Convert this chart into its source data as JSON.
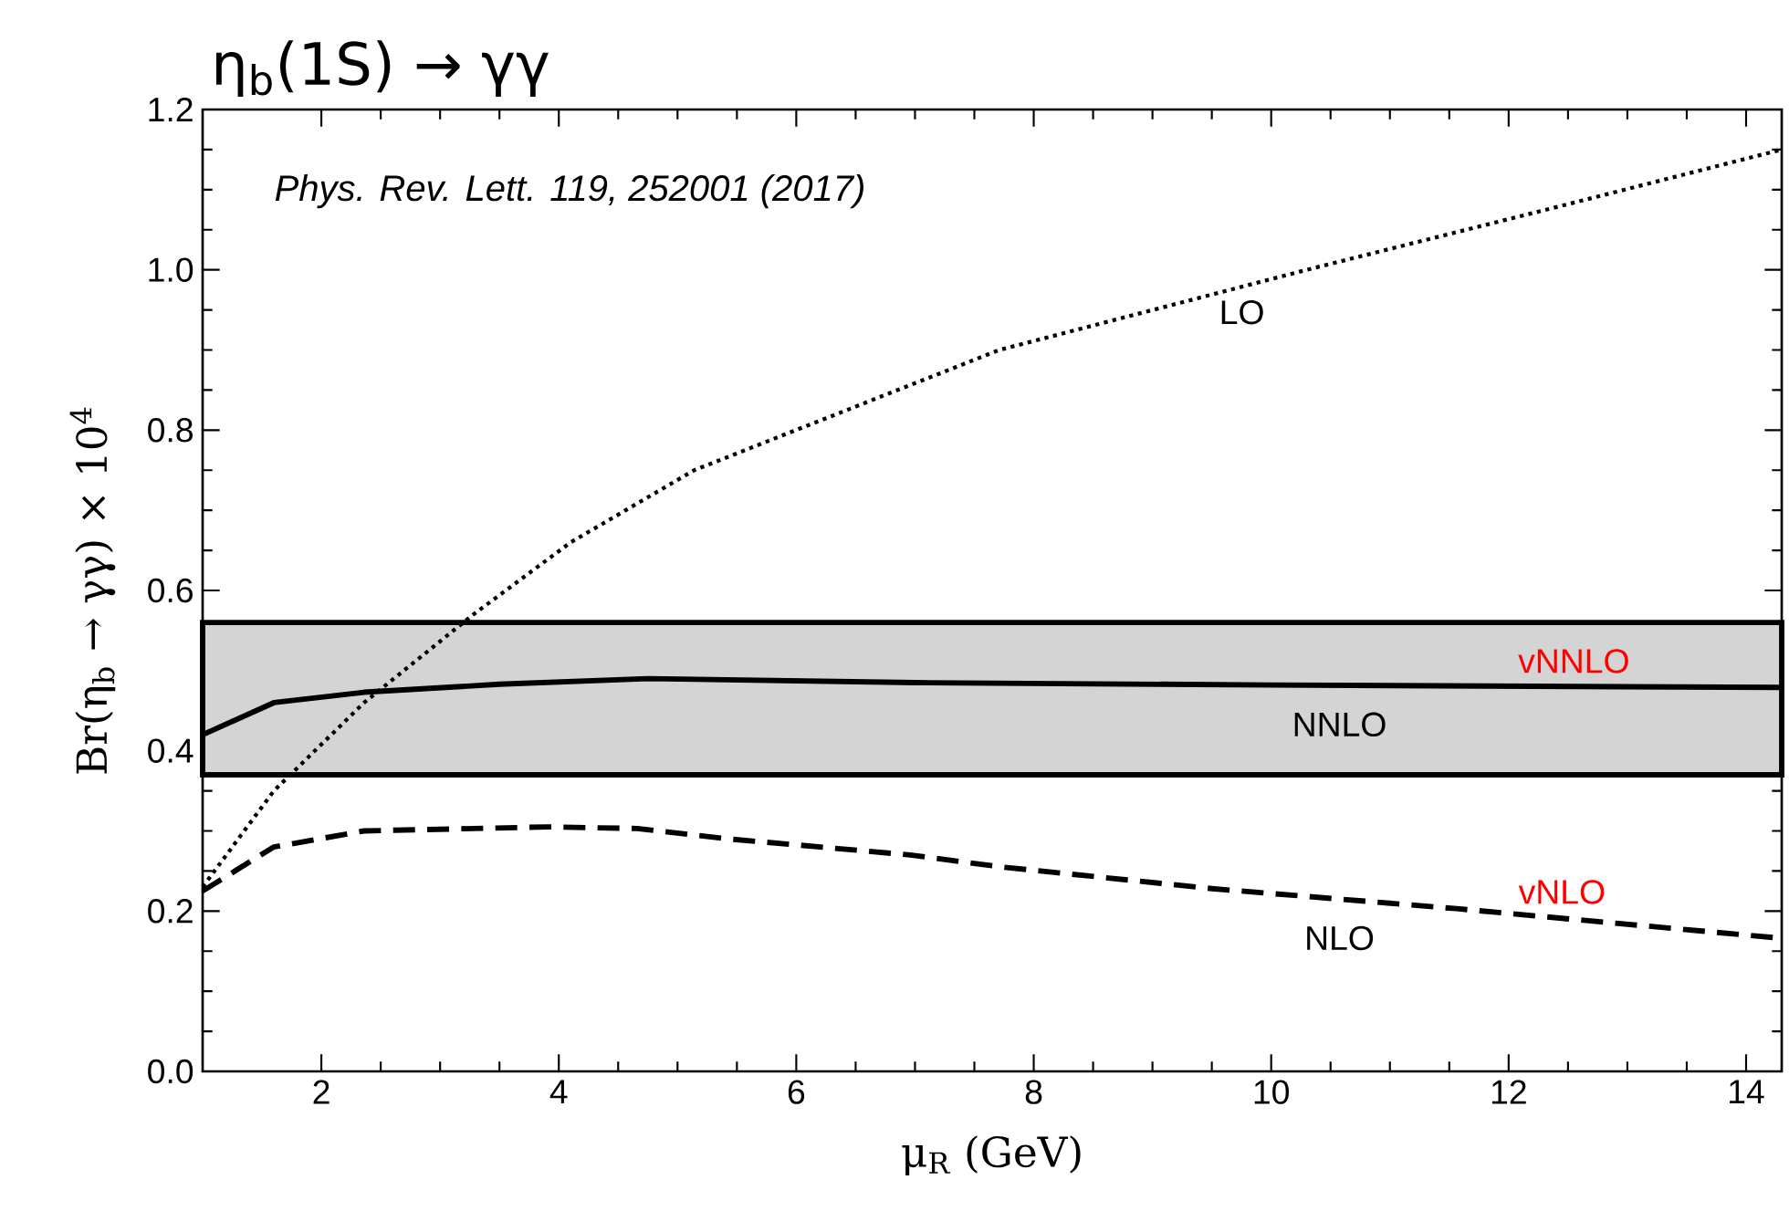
{
  "chart_data": {
    "type": "line",
    "title": "η$_{b}$(1S) → γγ",
    "xlabel": "μ$_{R}$ (GeV)",
    "ylabel": "Br(η$_{b}$ → γγ) × 10$^{4}$",
    "xlim": [
      1,
      14.3
    ],
    "ylim": [
      0,
      1.2
    ],
    "xticks": [
      2,
      4,
      6,
      8,
      10,
      12,
      14
    ],
    "yticks": [
      {
        "value": 0,
        "label": "0.0"
      },
      0.2,
      0.4,
      0.6,
      0.8,
      {
        "value": 1,
        "label": "1.0"
      },
      1.2
    ],
    "series": [
      {
        "name": "LO",
        "color": "#000000",
        "line_style": "dotted",
        "x": [
          1,
          1.6,
          2.36,
          3.28,
          4.1,
          5.14,
          7.71,
          10.3,
          12.45,
          14.3
        ],
        "values": [
          0.23,
          0.35,
          0.46,
          0.57,
          0.66,
          0.75,
          0.9,
          1.0,
          1.08,
          1.15
        ]
      },
      {
        "name": "NLO",
        "color": "#000000",
        "line_style": "dashed",
        "x": [
          1,
          1.6,
          2.36,
          3.9,
          4.66,
          5.43,
          6.96,
          7.73,
          9.5,
          11.56,
          14.3
        ],
        "values": [
          0.225,
          0.28,
          0.3,
          0.305,
          0.303,
          0.29,
          0.27,
          0.255,
          0.228,
          0.203,
          0.166
        ]
      },
      {
        "name": "NNLO",
        "color": "#000000",
        "line_style": "solid",
        "x": [
          1,
          1.6,
          2.36,
          3.5,
          4.75,
          7,
          10,
          14.3
        ],
        "values": [
          0.42,
          0.46,
          0.473,
          0.483,
          0.49,
          0.485,
          0.482,
          0.479
        ]
      }
    ],
    "marker": "none",
    "bands": [
      {
        "axis": "y",
        "from": 0.37,
        "to": 0.56,
        "color": "#d4d4d4"
      }
    ],
    "annotations": [
      "*Phys. Rev. Lett. 119, 252001 (2017)*",
      {
        "text": "vNNLO",
        "x": 12.55,
        "y": 0.481
      },
      {
        "text": "vNLO",
        "x": 12.45,
        "y": 0.193
      }
    ]
  }
}
